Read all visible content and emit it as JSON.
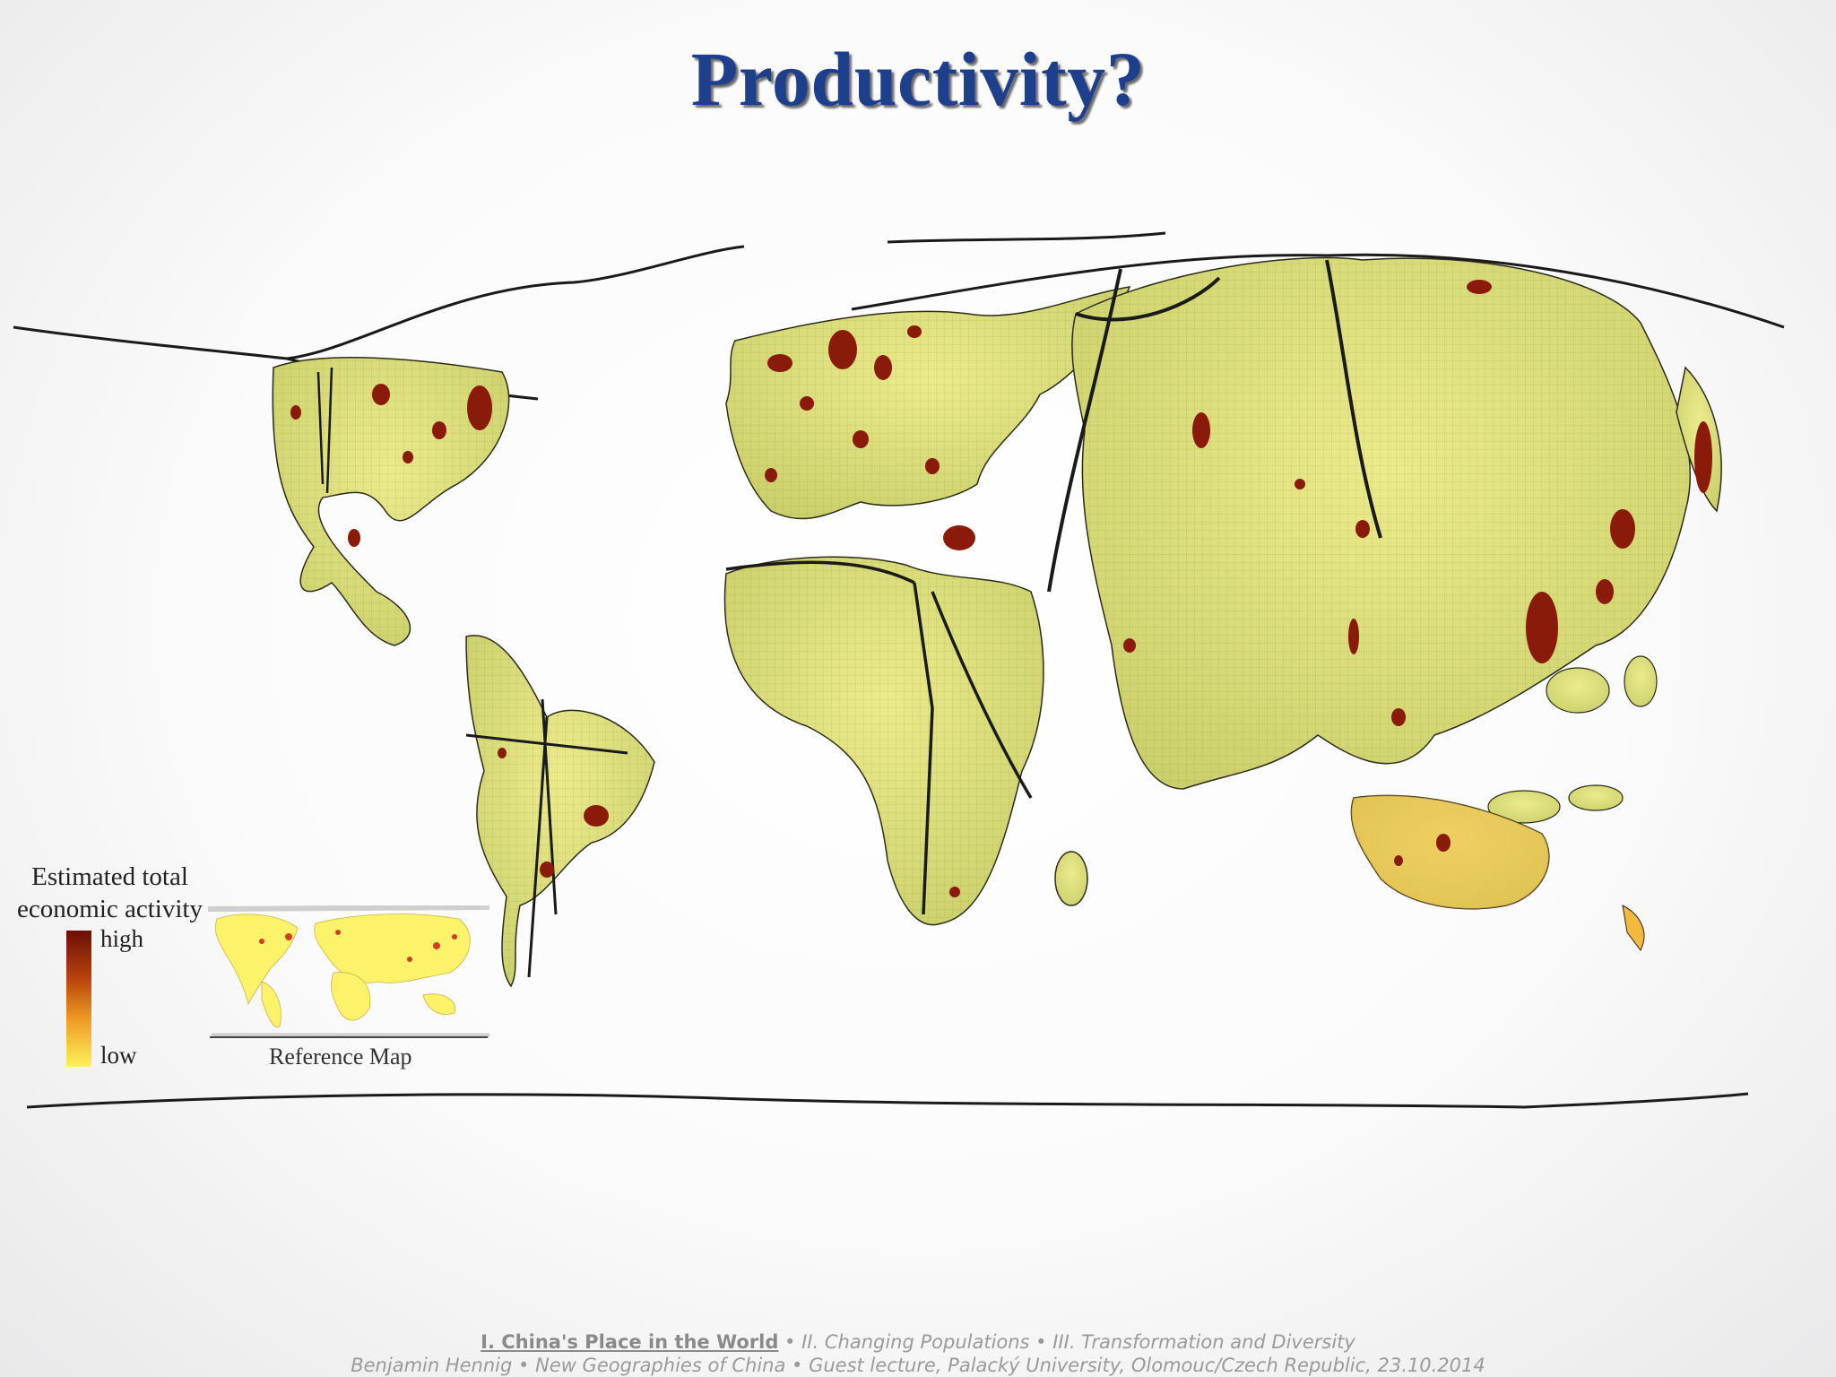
{
  "slide": {
    "title": "Productivity?"
  },
  "legend": {
    "title_line1": "Estimated total",
    "title_line2": "economic activity",
    "high_label": "high",
    "low_label": "low",
    "reference_map_label": "Reference Map",
    "colors": {
      "high": "#6b0e07",
      "mid": "#ee9a25",
      "low": "#fff25a"
    }
  },
  "map": {
    "colors": {
      "land": "#d8dc78",
      "land_light": "#e8e98e",
      "hotspot": "#8a1a0a",
      "outline": "#1a1a1a"
    }
  },
  "footer": {
    "section_current": "I. China's Place in the World",
    "sections_rest": " • II. Changing Populations •  III. Transformation and Diversity",
    "line2": "Benjamin Hennig • New Geographies of China • Guest lecture, Palacký University, Olomouc/Czech Republic, 23.10.2014"
  }
}
